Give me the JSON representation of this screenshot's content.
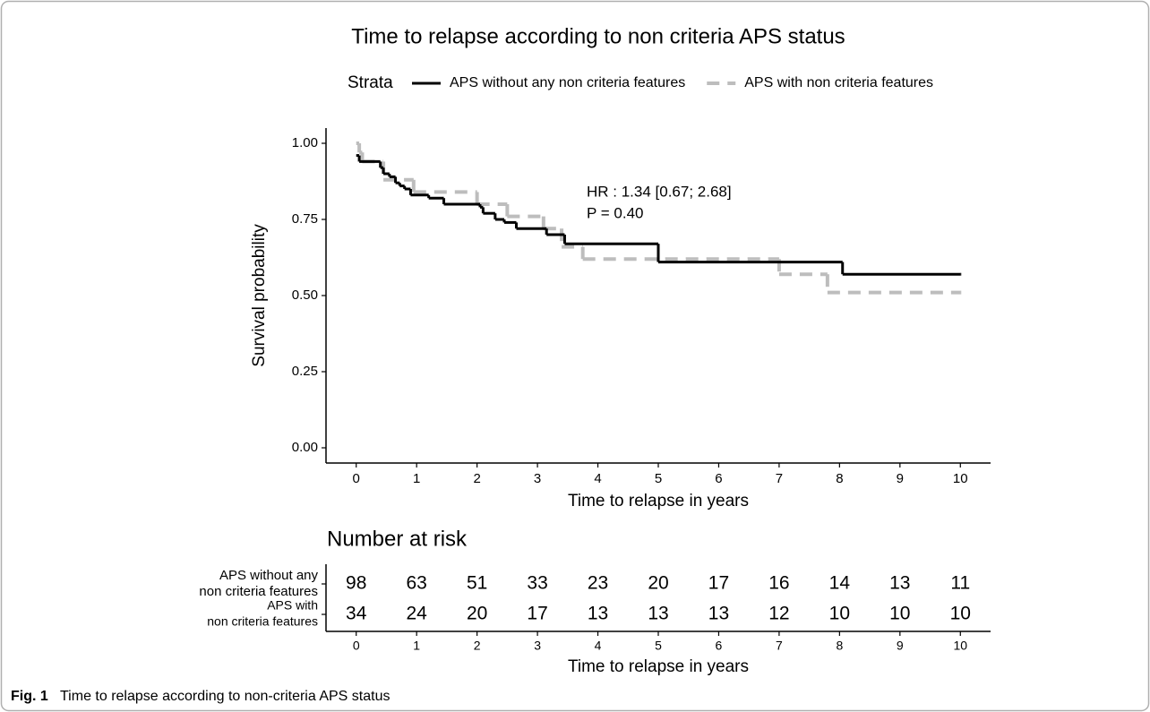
{
  "chart_data": {
    "type": "step",
    "title": "Time to relapse according to non criteria APS status",
    "legend_title": "Strata",
    "xlabel": "Time to relapse in years",
    "ylabel": "Survival probability",
    "annotations": [
      "HR : 1.34 [0.67; 2.68]",
      "P = 0.40"
    ],
    "xlim": [
      -0.5,
      10.5
    ],
    "ylim": [
      -0.05,
      1.05
    ],
    "xticks": [
      0,
      1,
      2,
      3,
      4,
      5,
      6,
      7,
      8,
      9,
      10
    ],
    "yticks": [
      {
        "value": 0,
        "label": "0.00"
      },
      {
        "value": 0.25,
        "label": "0.25"
      },
      {
        "value": 0.5,
        "label": "0.50"
      },
      {
        "value": 0.75,
        "label": "0.75"
      },
      {
        "value": 1,
        "label": "1.00"
      }
    ],
    "series": [
      {
        "name": "APS without any non criteria features",
        "color": "#000000",
        "dashed": false,
        "x": [
          0,
          0.05,
          0.4,
          0.45,
          0.55,
          0.65,
          0.72,
          0.8,
          0.9,
          1.2,
          1.45,
          2.05,
          2.1,
          2.3,
          2.45,
          2.65,
          3.15,
          3.45,
          5.0,
          8.05,
          10
        ],
        "values": [
          0.96,
          0.94,
          0.92,
          0.9,
          0.89,
          0.87,
          0.86,
          0.85,
          0.83,
          0.82,
          0.8,
          0.79,
          0.77,
          0.75,
          0.74,
          0.72,
          0.7,
          0.67,
          0.61,
          0.57,
          0.57
        ]
      },
      {
        "name": "APS with non criteria features",
        "color": "#bdbdbd",
        "dashed": true,
        "x": [
          0,
          0.05,
          0.1,
          0.45,
          0.95,
          2.0,
          2.5,
          3.1,
          3.4,
          3.75,
          7.0,
          7.8,
          10
        ],
        "values": [
          1.0,
          0.97,
          0.94,
          0.88,
          0.84,
          0.8,
          0.76,
          0.72,
          0.66,
          0.62,
          0.57,
          0.51,
          0.51
        ]
      }
    ]
  },
  "risk_table": {
    "title": "Number at risk",
    "xlabel": "Time to relapse in years",
    "xticks": [
      0,
      1,
      2,
      3,
      4,
      5,
      6,
      7,
      8,
      9,
      10
    ],
    "rows": [
      {
        "label_lines": [
          "APS without any",
          "non criteria features"
        ],
        "color": "#000000",
        "values": [
          98,
          63,
          51,
          33,
          23,
          20,
          17,
          16,
          14,
          13,
          11
        ]
      },
      {
        "label_lines": [
          "APS with",
          "non criteria features"
        ],
        "color": "#b3b3b3",
        "values": [
          34,
          24,
          20,
          17,
          13,
          13,
          13,
          12,
          10,
          10,
          10
        ]
      }
    ]
  },
  "caption": {
    "label": "Fig. 1",
    "text": "Time to relapse according to non-criteria APS status"
  }
}
